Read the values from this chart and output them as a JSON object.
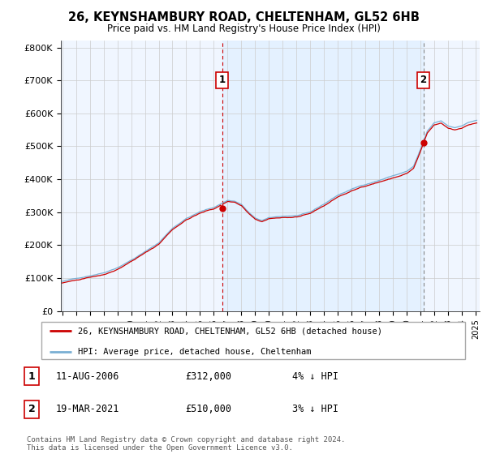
{
  "title": "26, KEYNSHAMBURY ROAD, CHELTENHAM, GL52 6HB",
  "subtitle": "Price paid vs. HM Land Registry's House Price Index (HPI)",
  "ylabel_ticks": [
    "£0",
    "£100K",
    "£200K",
    "£300K",
    "£400K",
    "£500K",
    "£600K",
    "£700K",
    "£800K"
  ],
  "ytick_values": [
    0,
    100000,
    200000,
    300000,
    400000,
    500000,
    600000,
    700000,
    800000
  ],
  "ylim": [
    0,
    820000
  ],
  "xlim_start": 1994.9,
  "xlim_end": 2025.3,
  "purchase1_date": 2006.6,
  "purchase1_price": 312000,
  "purchase1_label": "1",
  "purchase2_date": 2021.21,
  "purchase2_price": 510000,
  "purchase2_label": "2",
  "line_color_red": "#cc0000",
  "line_color_blue": "#7ab0d4",
  "vline1_color": "#cc0000",
  "vline2_color": "#888888",
  "fill_color": "#ddeeff",
  "legend_text1": "26, KEYNSHAMBURY ROAD, CHELTENHAM, GL52 6HB (detached house)",
  "legend_text2": "HPI: Average price, detached house, Cheltenham",
  "table_row1": [
    "1",
    "11-AUG-2006",
    "£312,000",
    "4% ↓ HPI"
  ],
  "table_row2": [
    "2",
    "19-MAR-2021",
    "£510,000",
    "3% ↓ HPI"
  ],
  "footnote": "Contains HM Land Registry data © Crown copyright and database right 2024.\nThis data is licensed under the Open Government Licence v3.0.",
  "bg_color": "#ffffff",
  "grid_color": "#cccccc",
  "chart_bg": "#f0f6ff"
}
